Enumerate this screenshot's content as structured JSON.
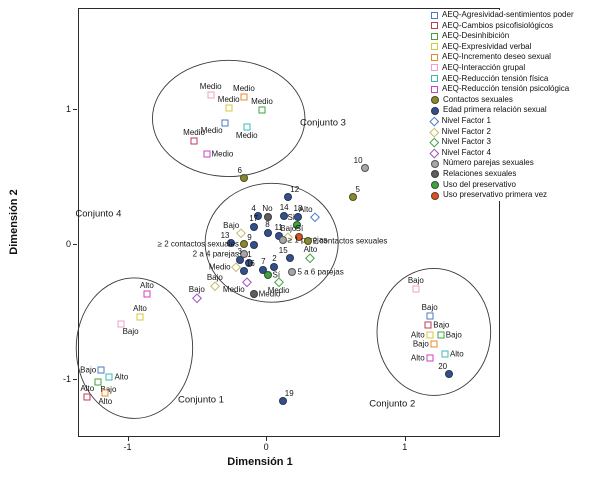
{
  "chart_data": {
    "type": "scatter",
    "title": "",
    "xlabel": "Dimensión 1",
    "ylabel": "Dimensión 2",
    "xlim": [
      -1.35,
      1.68
    ],
    "ylim": [
      -1.42,
      1.74
    ],
    "x_ticks": [
      -1,
      0,
      1
    ],
    "y_ticks": [
      1,
      0,
      -1
    ],
    "grid": false,
    "legend_position": "top-right",
    "palette": {
      "aeq_blue": "#4d79c7",
      "aeq_red": "#c03a55",
      "aeq_green": "#3fa33f",
      "aeq_yellow": "#d8c83a",
      "aeq_orange": "#e8872e",
      "aeq_pink": "#f2a0c8",
      "aeq_teal": "#3ab8b8",
      "aeq_magenta": "#cf3fc4",
      "olive": "#8a8a2a",
      "navy": "#31508f",
      "gray": "#a6a6a6",
      "darkgray": "#5e5e5e",
      "green_fill": "#3fa33f",
      "redorange": "#d9531e",
      "diamond_blue": "#4d79c7",
      "diamond_khaki": "#c9b96a",
      "diamond_green": "#3fa33f",
      "diamond_purple": "#9a4fc0"
    },
    "legend": [
      {
        "label": "AEQ-Agresividad-sentimientos poder",
        "marker": "square",
        "color": "aeq_blue"
      },
      {
        "label": "AEQ-Cambios psicofisiológicos",
        "marker": "square",
        "color": "aeq_red"
      },
      {
        "label": "AEQ-Desinhibición",
        "marker": "square",
        "color": "aeq_green"
      },
      {
        "label": "AEQ-Expresividad verbal",
        "marker": "square",
        "color": "aeq_yellow"
      },
      {
        "label": "AEQ-Incremento deseo sexual",
        "marker": "square",
        "color": "aeq_orange"
      },
      {
        "label": "AEQ-Interacción grupal",
        "marker": "square",
        "color": "aeq_pink"
      },
      {
        "label": "AEQ-Reducción tensión física",
        "marker": "square",
        "color": "aeq_teal"
      },
      {
        "label": "AEQ-Reducción tensión psicológica",
        "marker": "square",
        "color": "aeq_magenta"
      },
      {
        "label": "Contactos sexuales",
        "marker": "circle",
        "color": "olive"
      },
      {
        "label": "Edad primera relación sexual",
        "marker": "circle",
        "color": "navy"
      },
      {
        "label": "Nivel Factor 1",
        "marker": "diamond",
        "color": "diamond_blue"
      },
      {
        "label": "Nivel Factor 2",
        "marker": "diamond",
        "color": "diamond_khaki"
      },
      {
        "label": "Nivel Factor 3",
        "marker": "diamond",
        "color": "diamond_green"
      },
      {
        "label": "Nivel Factor 4",
        "marker": "diamond",
        "color": "diamond_purple"
      },
      {
        "label": "Número parejas sexuales",
        "marker": "circle",
        "color": "gray"
      },
      {
        "label": "Relaciones sexuales",
        "marker": "circle",
        "color": "darkgray"
      },
      {
        "label": "Uso del preservativo",
        "marker": "circle",
        "color": "green_fill"
      },
      {
        "label": "Uso preservativo primera vez",
        "marker": "circle",
        "color": "redorange"
      }
    ],
    "cluster_labels": [
      {
        "text": "Conjunto 3",
        "x": 0.41,
        "y": 0.9
      },
      {
        "text": "Conjunto 4",
        "x": -1.21,
        "y": 0.22
      },
      {
        "text": "Conjunto 1",
        "x": -0.47,
        "y": -1.15
      },
      {
        "text": "Conjunto 2",
        "x": 0.91,
        "y": -1.18
      }
    ],
    "ellipses": [
      {
        "cx": -0.27,
        "cy": 0.93,
        "rx": 0.55,
        "ry": 0.43
      },
      {
        "cx": 0.04,
        "cy": 0.01,
        "rx": 0.48,
        "ry": 0.44
      },
      {
        "cx": -0.95,
        "cy": -0.77,
        "rx": 0.42,
        "ry": 0.52
      },
      {
        "cx": 1.21,
        "cy": -0.65,
        "rx": 0.41,
        "ry": 0.47
      }
    ],
    "points": [
      {
        "x": -0.4,
        "y": 1.1,
        "marker": "square",
        "color": "aeq_pink",
        "label": "Medio",
        "label_pos": "above"
      },
      {
        "x": -0.16,
        "y": 1.09,
        "marker": "square",
        "color": "aeq_orange",
        "label": "Medio",
        "label_pos": "above"
      },
      {
        "x": -0.27,
        "y": 1.01,
        "marker": "square",
        "color": "aeq_yellow",
        "label": "Medio",
        "label_pos": "above"
      },
      {
        "x": -0.03,
        "y": 0.99,
        "marker": "square",
        "color": "aeq_green",
        "label": "Medio",
        "label_pos": "above"
      },
      {
        "x": -0.3,
        "y": 0.9,
        "marker": "square",
        "color": "aeq_blue",
        "label": "Medio",
        "label_pos": "below-left"
      },
      {
        "x": -0.14,
        "y": 0.87,
        "marker": "square",
        "color": "aeq_teal",
        "label": "Medio",
        "label_pos": "below"
      },
      {
        "x": -0.52,
        "y": 0.76,
        "marker": "square",
        "color": "aeq_red",
        "label": "Medio",
        "label_pos": "above"
      },
      {
        "x": -0.43,
        "y": 0.67,
        "marker": "square",
        "color": "aeq_magenta",
        "label": "Medio",
        "label_pos": "right"
      },
      {
        "x": -0.16,
        "y": 0.49,
        "marker": "circle",
        "color": "olive",
        "label": "6",
        "label_pos": "above-left"
      },
      {
        "x": 0.71,
        "y": 0.56,
        "marker": "circle",
        "color": "gray",
        "label": "10",
        "label_pos": "above-left"
      },
      {
        "x": 0.63,
        "y": 0.35,
        "marker": "circle",
        "color": "olive",
        "label": "5",
        "label_pos": "above-right"
      },
      {
        "x": 0.16,
        "y": 0.35,
        "marker": "circle",
        "color": "navy",
        "label": "12",
        "label_pos": "above-right"
      },
      {
        "x": -0.06,
        "y": 0.21,
        "marker": "circle",
        "color": "navy",
        "label": "4",
        "label_pos": "above-left"
      },
      {
        "x": 0.01,
        "y": 0.2,
        "marker": "circle",
        "color": "darkgray",
        "label": "No",
        "label_pos": "above"
      },
      {
        "x": 0.13,
        "y": 0.21,
        "marker": "circle",
        "color": "navy",
        "label": "14",
        "label_pos": "above"
      },
      {
        "x": 0.23,
        "y": 0.2,
        "marker": "circle",
        "color": "navy",
        "label": "18",
        "label_pos": "above"
      },
      {
        "x": 0.35,
        "y": 0.2,
        "marker": "diamond",
        "color": "diamond_blue",
        "label": "Alto",
        "label_pos": "above-left"
      },
      {
        "x": 0.22,
        "y": 0.14,
        "marker": "circle",
        "color": "green_fill",
        "label": "Si",
        "label_pos": "above-left"
      },
      {
        "x": -0.09,
        "y": 0.13,
        "marker": "circle",
        "color": "navy",
        "label": "17",
        "label_pos": "above"
      },
      {
        "x": -0.18,
        "y": 0.08,
        "marker": "diamond",
        "color": "diamond_khaki",
        "label": "Bajo",
        "label_pos": "above-left"
      },
      {
        "x": 0.01,
        "y": 0.08,
        "marker": "circle",
        "color": "navy",
        "label": "8",
        "label_pos": "above"
      },
      {
        "x": 0.09,
        "y": 0.06,
        "marker": "circle",
        "color": "navy",
        "label": "11",
        "label_pos": "above"
      },
      {
        "x": 0.16,
        "y": 0.05,
        "marker": "diamond",
        "color": "diamond_khaki",
        "label": "Bajo",
        "label_pos": "above"
      },
      {
        "x": 0.24,
        "y": 0.05,
        "marker": "circle",
        "color": "redorange",
        "label": "Sí",
        "label_pos": "above"
      },
      {
        "x": -0.25,
        "y": 0.01,
        "marker": "circle",
        "color": "navy",
        "label": "13",
        "label_pos": "above-left"
      },
      {
        "x": -0.16,
        "y": 0.0,
        "marker": "circle",
        "color": "olive",
        "label": "≥ 2 contactos sexuales",
        "label_pos": "left"
      },
      {
        "x": -0.09,
        "y": -0.01,
        "marker": "circle",
        "color": "navy",
        "label": "9",
        "label_pos": "above-left"
      },
      {
        "x": 0.12,
        "y": 0.03,
        "marker": "circle",
        "color": "gray",
        "label": "≥ 1 parejas",
        "label_pos": "right"
      },
      {
        "x": 0.3,
        "y": 0.02,
        "marker": "circle",
        "color": "olive",
        "label": "2 contactos sexuales",
        "label_pos": "right"
      },
      {
        "x": -0.16,
        "y": -0.07,
        "marker": "circle",
        "color": "gray",
        "label": "2 a 4 parejas",
        "label_pos": "left"
      },
      {
        "x": 0.17,
        "y": -0.1,
        "marker": "circle",
        "color": "navy",
        "label": "15",
        "label_pos": "above-left"
      },
      {
        "x": 0.32,
        "y": -0.1,
        "marker": "diamond",
        "color": "diamond_green",
        "label": "Alto",
        "label_pos": "above"
      },
      {
        "x": -0.19,
        "y": -0.12,
        "marker": "circle",
        "color": "navy",
        "label": "3",
        "label_pos": "above"
      },
      {
        "x": -0.12,
        "y": -0.14,
        "marker": "circle",
        "color": "navy",
        "label": "1",
        "label_pos": "above"
      },
      {
        "x": -0.22,
        "y": -0.17,
        "marker": "diamond",
        "color": "diamond_khaki",
        "label": "Medio",
        "label_pos": "left"
      },
      {
        "x": -0.16,
        "y": -0.2,
        "marker": "circle",
        "color": "navy",
        "label": "16",
        "label_pos": "above-right"
      },
      {
        "x": -0.02,
        "y": -0.19,
        "marker": "circle",
        "color": "navy",
        "label": "7",
        "label_pos": "above"
      },
      {
        "x": 0.06,
        "y": -0.17,
        "marker": "circle",
        "color": "navy",
        "label": "2",
        "label_pos": "above"
      },
      {
        "x": 0.01,
        "y": -0.23,
        "marker": "circle",
        "color": "green_fill",
        "label": "Sí",
        "label_pos": "right"
      },
      {
        "x": 0.19,
        "y": -0.21,
        "marker": "circle",
        "color": "gray",
        "label": "5 a 6 parejas",
        "label_pos": "right"
      },
      {
        "x": -0.14,
        "y": -0.28,
        "marker": "diamond",
        "color": "diamond_purple",
        "label": "Medio",
        "label_pos": "below-left"
      },
      {
        "x": 0.09,
        "y": -0.28,
        "marker": "diamond",
        "color": "diamond_green",
        "label": "Medio",
        "label_pos": "below"
      },
      {
        "x": -0.37,
        "y": -0.31,
        "marker": "diamond",
        "color": "diamond_khaki",
        "label": "Bajo",
        "label_pos": "above"
      },
      {
        "x": -0.09,
        "y": -0.37,
        "marker": "circle",
        "color": "darkgray",
        "label": "Medio",
        "label_pos": "right"
      },
      {
        "x": -0.5,
        "y": -0.4,
        "marker": "diamond",
        "color": "diamond_purple",
        "label": "Bajo",
        "label_pos": "above"
      },
      {
        "x": -0.86,
        "y": -0.37,
        "marker": "square",
        "color": "aeq_magenta",
        "label": "Alto",
        "label_pos": "above"
      },
      {
        "x": -0.91,
        "y": -0.54,
        "marker": "square",
        "color": "aeq_yellow",
        "label": "Alto",
        "label_pos": "above"
      },
      {
        "x": -1.05,
        "y": -0.59,
        "marker": "square",
        "color": "aeq_pink",
        "label": "Bajo",
        "label_pos": "below-right"
      },
      {
        "x": -1.19,
        "y": -0.93,
        "marker": "square",
        "color": "aeq_blue",
        "label": "Bajo",
        "label_pos": "left"
      },
      {
        "x": -1.13,
        "y": -0.98,
        "marker": "square",
        "color": "aeq_teal",
        "label": "Alto",
        "label_pos": "right"
      },
      {
        "x": -1.21,
        "y": -1.02,
        "marker": "square",
        "color": "aeq_green",
        "label": "Bajo",
        "label_pos": "below-right"
      },
      {
        "x": -1.29,
        "y": -1.13,
        "marker": "square",
        "color": "aeq_red",
        "label": "Alto",
        "label_pos": "above"
      },
      {
        "x": -1.16,
        "y": -1.1,
        "marker": "square",
        "color": "aeq_orange",
        "label": "Alto",
        "label_pos": "below"
      },
      {
        "x": 0.12,
        "y": -1.16,
        "marker": "circle",
        "color": "navy",
        "label": "19",
        "label_pos": "above-right"
      },
      {
        "x": 1.08,
        "y": -0.33,
        "marker": "square",
        "color": "aeq_pink",
        "label": "Bajo",
        "label_pos": "above"
      },
      {
        "x": 1.18,
        "y": -0.53,
        "marker": "square",
        "color": "aeq_blue",
        "label": "Bajo",
        "label_pos": "above"
      },
      {
        "x": 1.17,
        "y": -0.6,
        "marker": "square",
        "color": "aeq_red",
        "label": "Bajo",
        "label_pos": "right"
      },
      {
        "x": 1.18,
        "y": -0.67,
        "marker": "square",
        "color": "aeq_yellow",
        "label": "Alto",
        "label_pos": "left"
      },
      {
        "x": 1.26,
        "y": -0.67,
        "marker": "square",
        "color": "aeq_green",
        "label": "Bajo",
        "label_pos": "right"
      },
      {
        "x": 1.21,
        "y": -0.74,
        "marker": "square",
        "color": "aeq_orange",
        "label": "Bajo",
        "label_pos": "left"
      },
      {
        "x": 1.29,
        "y": -0.81,
        "marker": "square",
        "color": "aeq_teal",
        "label": "Alto",
        "label_pos": "right"
      },
      {
        "x": 1.18,
        "y": -0.84,
        "marker": "square",
        "color": "aeq_magenta",
        "label": "Alto",
        "label_pos": "left"
      },
      {
        "x": 1.32,
        "y": -0.96,
        "marker": "circle",
        "color": "navy",
        "label": "20",
        "label_pos": "above-left"
      }
    ]
  }
}
